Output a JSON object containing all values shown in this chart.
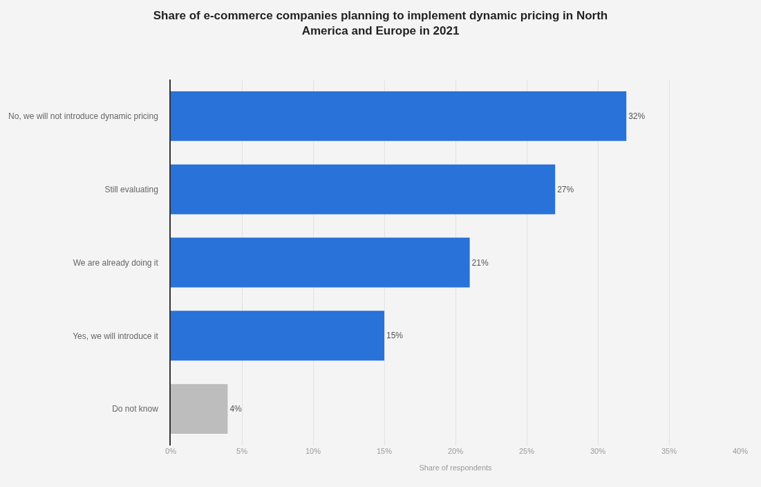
{
  "chart_data": {
    "type": "bar",
    "orientation": "horizontal",
    "title": "Share of e-commerce companies planning to implement dynamic pricing in North America and Europe in 2021",
    "xlabel": "Share of respondents",
    "categories": [
      "No, we will not introduce dynamic pricing",
      "Still evaluating",
      "We are already doing it",
      "Yes, we will introduce it",
      "Do not know"
    ],
    "values": [
      32,
      27,
      21,
      15,
      4
    ],
    "colors": [
      "#2872d9",
      "#2872d9",
      "#2872d9",
      "#2872d9",
      "#bdbdbd"
    ],
    "value_labels": [
      "32%",
      "27%",
      "21%",
      "15%",
      "4%"
    ],
    "xlim": [
      0,
      40
    ],
    "xticks": [
      {
        "value": 0,
        "label": "0%"
      },
      {
        "value": 5,
        "label": "5%"
      },
      {
        "value": 10,
        "label": "10%"
      },
      {
        "value": 15,
        "label": "15%"
      },
      {
        "value": 20,
        "label": "20%"
      },
      {
        "value": 25,
        "label": "25%"
      },
      {
        "value": 30,
        "label": "30%"
      },
      {
        "value": 35,
        "label": "35%"
      },
      {
        "value": 40,
        "label": "40%"
      }
    ],
    "grid": "x"
  }
}
